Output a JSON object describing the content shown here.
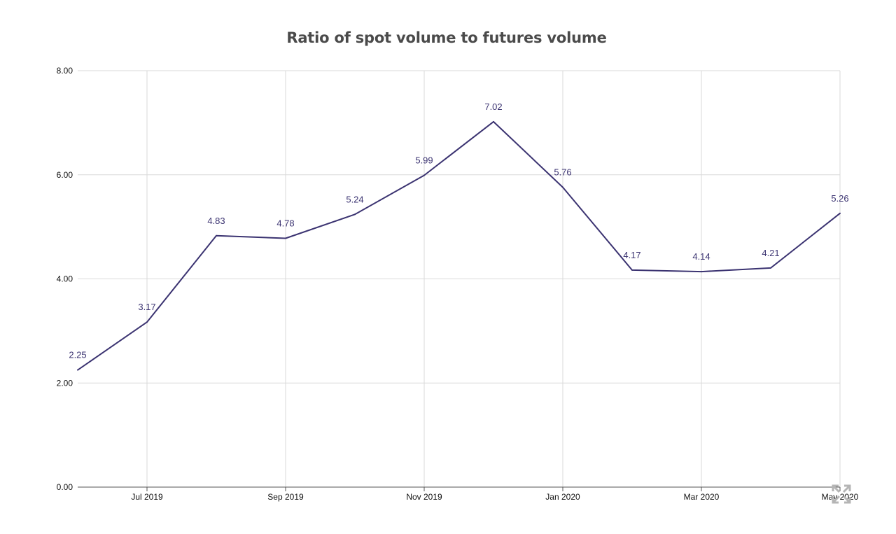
{
  "chart_data": {
    "type": "line",
    "title": "Ratio of spot volume to futures volume",
    "xlabel": "",
    "ylabel": "",
    "x": [
      "Jun 2019",
      "Jul 2019",
      "Aug 2019",
      "Sep 2019",
      "Oct 2019",
      "Nov 2019",
      "Dec 2019",
      "Jan 2020",
      "Feb 2020",
      "Mar 2020",
      "Apr 2020",
      "May 2020"
    ],
    "values": [
      2.25,
      3.17,
      4.83,
      4.78,
      5.24,
      5.99,
      7.02,
      5.76,
      4.17,
      4.14,
      4.21,
      5.26
    ],
    "data_labels": [
      "2.25",
      "3.17",
      "4.83",
      "4.78",
      "5.24",
      "5.99",
      "7.02",
      "5.76",
      "4.17",
      "4.14",
      "4.21",
      "5.26"
    ],
    "x_tick_labels": [
      "Jul 2019",
      "Sep 2019",
      "Nov 2019",
      "Jan 2020",
      "Mar 2020",
      "May 2020"
    ],
    "y_tick_labels": [
      "0.00",
      "2.00",
      "4.00",
      "6.00",
      "8.00"
    ],
    "ylim": [
      0,
      8
    ],
    "grid": true,
    "legend": "none",
    "line_color": "#3b3371",
    "label_color": "#3b3371",
    "grid_color": "#d9d9d9"
  },
  "icons": {
    "corner": "expand-icon"
  }
}
